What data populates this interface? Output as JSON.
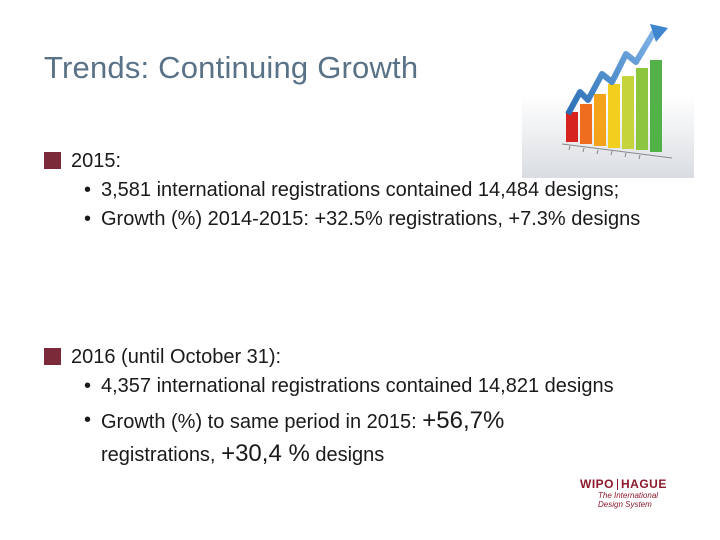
{
  "slide": {
    "title": "Trends: Continuing Growth",
    "section1": {
      "heading": "2015:",
      "bullets": [
        "3,581 international registrations contained 14,484 designs;",
        "Growth (%) 2014-2015: +32.5% registrations, +7.3% designs"
      ]
    },
    "section2": {
      "heading": "2016 (until October 31):",
      "bullet1": "4,357 international registrations contained 14,821 designs",
      "bullet2_pre": "Growth (%) to same period in 2015: ",
      "bullet2_big1": "+56,7%",
      "bullet2_mid": " registrations, ",
      "bullet2_big2": "+30,4 %",
      "bullet2_post": " designs"
    },
    "logo": {
      "brand_left": "WIPO",
      "brand_right": "HAGUE",
      "tagline1": "The International",
      "tagline2": "Design System"
    },
    "colors": {
      "title": "#5a7287",
      "bullet_square": "#7a2a38",
      "logo": "#8b1a2b"
    }
  }
}
